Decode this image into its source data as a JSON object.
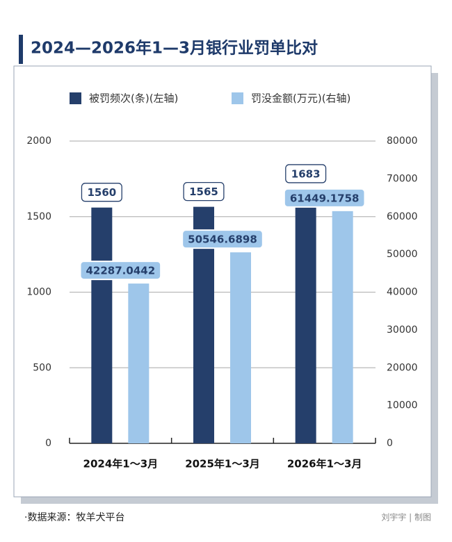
{
  "chart_data": {
    "type": "bar",
    "title": "2024—2026年1—3月银行业罚单比对",
    "categories": [
      "2024年1～3月",
      "2025年1～3月",
      "2026年1～3月"
    ],
    "series": [
      {
        "name": "被罚频次(条)(左轴)",
        "color": "#253f6b",
        "values": [
          1560,
          1565,
          1683
        ]
      },
      {
        "name": "罚没金额(万元)(右轴)",
        "color": "#9ec6ea",
        "axis": "y2",
        "values": [
          42287.0442,
          50546.6898,
          61449.1758
        ]
      }
    ],
    "ylim": [
      0,
      2000
    ],
    "yticks": [
      0,
      500,
      1000,
      1500,
      2000
    ],
    "y2lim": [
      0,
      80000
    ],
    "y2ticks": [
      0,
      10000,
      20000,
      30000,
      40000,
      50000,
      60000,
      70000,
      80000
    ],
    "grid": true,
    "legend": "top"
  },
  "footer": {
    "source": "·数据来源：牧羊犬平台",
    "credit": "刘宇宇 | 制图"
  }
}
